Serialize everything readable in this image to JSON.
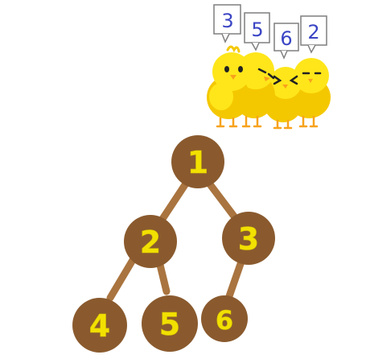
{
  "tree": {
    "nodes": [
      {
        "id": "1",
        "label": "1"
      },
      {
        "id": "2",
        "label": "2"
      },
      {
        "id": "3",
        "label": "3"
      },
      {
        "id": "4",
        "label": "4"
      },
      {
        "id": "5",
        "label": "5"
      },
      {
        "id": "6",
        "label": "6"
      }
    ],
    "edges": [
      [
        "1",
        "2"
      ],
      [
        "1",
        "3"
      ],
      [
        "2",
        "4"
      ],
      [
        "2",
        "5"
      ],
      [
        "3",
        "6"
      ]
    ]
  },
  "chicks": {
    "bubbles": [
      "3",
      "5",
      "6",
      "2"
    ]
  },
  "colors": {
    "node_fill": "#8a5a2e",
    "node_text": "#f2e000",
    "edge": "#a9743f",
    "bubble_text": "#3b45c4",
    "bubble_border": "#7f7f7f",
    "chick_body": "#ffe61a",
    "chick_shade": "#f4c800",
    "beak": "#f7a21c"
  }
}
